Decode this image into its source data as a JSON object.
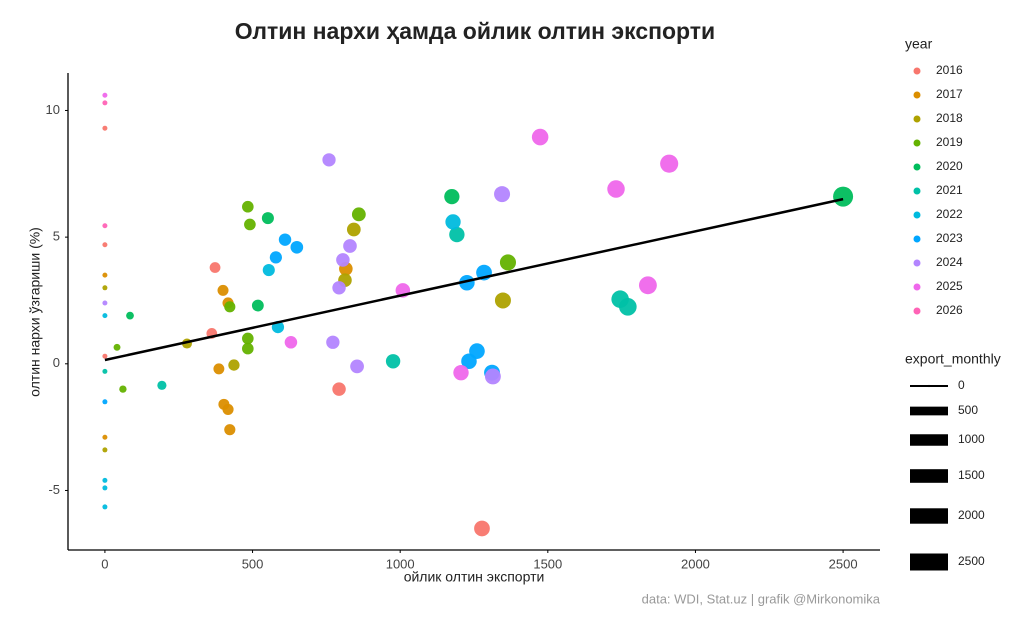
{
  "chart_data": {
    "type": "scatter",
    "title": "Олтин нархи ҳамда ойлик олтин экспорти",
    "x_label": "ойлик олтин экспорти",
    "y_label": "олтин нархи ўзгариши (%)",
    "caption": "data:  WDI,  Stat.uz | grafik @Mirkonomika",
    "legend_title": "year",
    "xlim": [
      -125,
      2625
    ],
    "ylim": [
      -7.35,
      11.4
    ],
    "xticks": [
      0,
      500,
      1000,
      1500,
      2000,
      2500
    ],
    "yticks": [
      -5,
      0,
      5,
      10
    ],
    "grid": false,
    "size_legend": {
      "title": "export_monthly",
      "values": [
        0,
        500,
        1000,
        1500,
        2000,
        2500
      ]
    },
    "trend": {
      "x": [
        0,
        2500
      ],
      "values": [
        0.15,
        6.5
      ],
      "color": "#000000"
    },
    "series": [
      {
        "name": "2016",
        "color": "#F8766D",
        "x": [
          0,
          0,
          0,
          373,
          362,
          793,
          1277
        ],
        "values": [
          9.3,
          4.7,
          0.3,
          3.8,
          1.2,
          -1.0,
          -6.5
        ]
      },
      {
        "name": "2017",
        "color": "#DB8E00",
        "x": [
          0,
          0,
          400,
          417,
          816,
          386,
          403,
          417,
          423
        ],
        "values": [
          3.5,
          -2.9,
          2.9,
          2.4,
          3.75,
          -0.2,
          -1.6,
          -1.8,
          -2.6
        ]
      },
      {
        "name": "2018",
        "color": "#AEA200",
        "x": [
          0,
          0,
          278,
          437,
          843,
          813,
          1348
        ],
        "values": [
          3.0,
          -3.4,
          0.8,
          -0.05,
          5.3,
          3.3,
          2.5
        ]
      },
      {
        "name": "2019",
        "color": "#64B200",
        "x": [
          41,
          61,
          484,
          491,
          423,
          484,
          484,
          860,
          1365
        ],
        "values": [
          0.65,
          -1.0,
          6.2,
          5.5,
          2.25,
          1.0,
          0.6,
          5.9,
          4.0
        ]
      },
      {
        "name": "2020",
        "color": "#00BD5C",
        "x": [
          85,
          552,
          518,
          1175,
          2500
        ],
        "values": [
          1.9,
          5.75,
          2.3,
          6.6,
          6.6
        ]
      },
      {
        "name": "2021",
        "color": "#00C1A7",
        "x": [
          0,
          193,
          976,
          1192,
          1745,
          1771
        ],
        "values": [
          -0.3,
          -0.85,
          0.1,
          5.1,
          2.55,
          2.25
        ]
      },
      {
        "name": "2022",
        "color": "#00BADE",
        "x": [
          0,
          0,
          0,
          0,
          555,
          586,
          1179
        ],
        "values": [
          1.9,
          -4.6,
          -4.9,
          -5.65,
          3.7,
          1.45,
          5.6
        ]
      },
      {
        "name": "2023",
        "color": "#00A6FF",
        "x": [
          0,
          579,
          610,
          650,
          1226,
          1284,
          1233,
          1260,
          1311
        ],
        "values": [
          -1.5,
          4.2,
          4.9,
          4.6,
          3.2,
          3.6,
          0.1,
          0.5,
          -0.35
        ]
      },
      {
        "name": "2024",
        "color": "#B385FF",
        "x": [
          0,
          759,
          830,
          806,
          793,
          772,
          854,
          1345,
          1314
        ],
        "values": [
          2.4,
          8.05,
          4.65,
          4.1,
          3.0,
          0.85,
          -0.1,
          6.7,
          -0.5
        ]
      },
      {
        "name": "2025",
        "color": "#EF67EB",
        "x": [
          0,
          1474,
          1911,
          1731,
          1839,
          1009,
          1206,
          630
        ],
        "values": [
          10.6,
          8.95,
          7.9,
          6.9,
          3.1,
          2.9,
          -0.35,
          0.85
        ]
      },
      {
        "name": "2026",
        "color": "#FF63B6",
        "x": [
          0,
          0
        ],
        "values": [
          10.3,
          5.45
        ]
      }
    ]
  }
}
